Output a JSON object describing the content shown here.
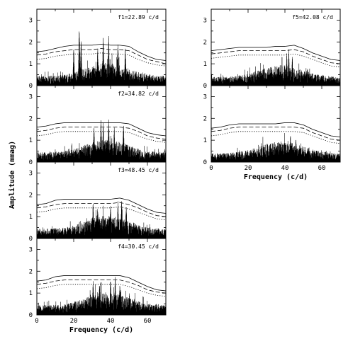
{
  "chart_data": [
    {
      "type": "line",
      "panel": "left-1",
      "annotation": "f1=22.89 c/d",
      "xlim": [
        0,
        70
      ],
      "ylim": [
        0,
        3.5
      ],
      "yticks": [
        "0",
        "1",
        "2",
        "3"
      ],
      "xticks": [],
      "xlabel": "",
      "peaks": [
        [
          20,
          1.9
        ],
        [
          23,
          3.0
        ],
        [
          24,
          2.4
        ],
        [
          33,
          1.9
        ],
        [
          36,
          2.4
        ],
        [
          39,
          2.5
        ],
        [
          44,
          2.1
        ],
        [
          48,
          1.95
        ]
      ],
      "noise_base": 0.55,
      "series": [
        {
          "style": "solid",
          "values_x": [
            0,
            5,
            10,
            15,
            20,
            25,
            30,
            35,
            40,
            45,
            50,
            55,
            60,
            65,
            70
          ],
          "values_y": [
            1.55,
            1.6,
            1.7,
            1.8,
            1.85,
            1.85,
            1.85,
            1.9,
            1.85,
            1.85,
            1.8,
            1.55,
            1.35,
            1.2,
            1.15
          ]
        },
        {
          "style": "dashed",
          "values_x": [
            0,
            5,
            10,
            15,
            20,
            25,
            30,
            35,
            40,
            45,
            50,
            55,
            60,
            65,
            70
          ],
          "values_y": [
            1.4,
            1.45,
            1.55,
            1.6,
            1.65,
            1.65,
            1.65,
            1.7,
            1.65,
            1.65,
            1.6,
            1.4,
            1.2,
            1.1,
            1.0
          ]
        },
        {
          "style": "dotted",
          "values_x": [
            0,
            5,
            10,
            15,
            20,
            25,
            30,
            35,
            40,
            45,
            50,
            55,
            60,
            65,
            70
          ],
          "values_y": [
            1.2,
            1.25,
            1.35,
            1.4,
            1.45,
            1.45,
            1.45,
            1.5,
            1.45,
            1.45,
            1.4,
            1.2,
            1.05,
            0.95,
            0.9
          ]
        }
      ]
    },
    {
      "type": "line",
      "panel": "left-2",
      "annotation": "f2=34.82 c/d",
      "xlim": [
        0,
        70
      ],
      "ylim": [
        0,
        3.5
      ],
      "yticks": [
        "0",
        "1",
        "2",
        "3"
      ],
      "xticks": [],
      "xlabel": "",
      "peaks": [
        [
          31,
          1.8
        ],
        [
          34.8,
          2.2
        ],
        [
          36,
          2.0
        ],
        [
          39,
          2.1
        ],
        [
          42,
          1.7
        ],
        [
          47,
          2.0
        ]
      ],
      "noise_base": 0.55,
      "series": [
        {
          "style": "solid",
          "values_x": [
            0,
            5,
            10,
            15,
            20,
            25,
            30,
            35,
            40,
            45,
            50,
            55,
            60,
            65,
            70
          ],
          "values_y": [
            1.6,
            1.65,
            1.75,
            1.8,
            1.8,
            1.8,
            1.8,
            1.8,
            1.8,
            1.8,
            1.75,
            1.55,
            1.35,
            1.25,
            1.2
          ]
        },
        {
          "style": "dashed",
          "values_x": [
            0,
            5,
            10,
            15,
            20,
            25,
            30,
            35,
            40,
            45,
            50,
            55,
            60,
            65,
            70
          ],
          "values_y": [
            1.4,
            1.45,
            1.55,
            1.6,
            1.6,
            1.6,
            1.6,
            1.6,
            1.6,
            1.6,
            1.55,
            1.4,
            1.2,
            1.1,
            1.05
          ]
        },
        {
          "style": "dotted",
          "values_x": [
            0,
            5,
            10,
            15,
            20,
            25,
            30,
            35,
            40,
            45,
            50,
            55,
            60,
            65,
            70
          ],
          "values_y": [
            1.2,
            1.25,
            1.35,
            1.4,
            1.4,
            1.4,
            1.4,
            1.4,
            1.4,
            1.4,
            1.35,
            1.2,
            1.05,
            0.95,
            0.9
          ]
        }
      ]
    },
    {
      "type": "line",
      "panel": "left-3",
      "annotation": "f3=48.45 c/d",
      "xlim": [
        0,
        70
      ],
      "ylim": [
        0,
        3.5
      ],
      "yticks": [
        "0",
        "1",
        "2",
        "3"
      ],
      "xticks": [],
      "xlabel": "",
      "peaks": [
        [
          30.5,
          1.85
        ],
        [
          33,
          1.6
        ],
        [
          40,
          1.7
        ],
        [
          44,
          1.8
        ],
        [
          46,
          1.95
        ],
        [
          48.5,
          1.7
        ]
      ],
      "noise_base": 0.55,
      "series": [
        {
          "style": "solid",
          "values_x": [
            0,
            5,
            10,
            15,
            20,
            25,
            30,
            35,
            40,
            45,
            50,
            55,
            60,
            65,
            70
          ],
          "values_y": [
            1.55,
            1.6,
            1.75,
            1.8,
            1.8,
            1.8,
            1.8,
            1.8,
            1.8,
            1.85,
            1.75,
            1.55,
            1.35,
            1.2,
            1.15
          ]
        },
        {
          "style": "dashed",
          "values_x": [
            0,
            5,
            10,
            15,
            20,
            25,
            30,
            35,
            40,
            45,
            50,
            55,
            60,
            65,
            70
          ],
          "values_y": [
            1.4,
            1.45,
            1.55,
            1.6,
            1.6,
            1.6,
            1.6,
            1.6,
            1.6,
            1.65,
            1.55,
            1.4,
            1.2,
            1.05,
            1.0
          ]
        },
        {
          "style": "dotted",
          "values_x": [
            0,
            5,
            10,
            15,
            20,
            25,
            30,
            35,
            40,
            45,
            50,
            55,
            60,
            65,
            70
          ],
          "values_y": [
            1.2,
            1.25,
            1.35,
            1.4,
            1.4,
            1.4,
            1.4,
            1.4,
            1.4,
            1.45,
            1.35,
            1.2,
            1.05,
            0.9,
            0.85
          ]
        }
      ]
    },
    {
      "type": "line",
      "panel": "left-4",
      "annotation": "f4=30.45 c/d",
      "xlim": [
        0,
        70
      ],
      "ylim": [
        0,
        3.5
      ],
      "yticks": [
        "0",
        "1",
        "2",
        "3"
      ],
      "xticks": [
        "0",
        "20",
        "40",
        "60"
      ],
      "xlabel": "Frequency (c/d)",
      "peaks": [
        [
          30.5,
          1.75
        ],
        [
          34,
          1.6
        ],
        [
          40,
          1.65
        ],
        [
          42.5,
          1.85
        ],
        [
          45,
          1.55
        ]
      ],
      "noise_base": 0.55,
      "series": [
        {
          "style": "solid",
          "values_x": [
            0,
            5,
            10,
            15,
            20,
            25,
            30,
            35,
            40,
            45,
            50,
            55,
            60,
            65,
            70
          ],
          "values_y": [
            1.55,
            1.6,
            1.75,
            1.8,
            1.8,
            1.8,
            1.8,
            1.8,
            1.8,
            1.8,
            1.7,
            1.5,
            1.3,
            1.15,
            1.1
          ]
        },
        {
          "style": "dashed",
          "values_x": [
            0,
            5,
            10,
            15,
            20,
            25,
            30,
            35,
            40,
            45,
            50,
            55,
            60,
            65,
            70
          ],
          "values_y": [
            1.4,
            1.45,
            1.55,
            1.6,
            1.6,
            1.6,
            1.6,
            1.6,
            1.6,
            1.6,
            1.5,
            1.35,
            1.15,
            1.05,
            1.0
          ]
        },
        {
          "style": "dotted",
          "values_x": [
            0,
            5,
            10,
            15,
            20,
            25,
            30,
            35,
            40,
            45,
            50,
            55,
            60,
            65,
            70
          ],
          "values_y": [
            1.2,
            1.25,
            1.35,
            1.4,
            1.4,
            1.4,
            1.4,
            1.4,
            1.4,
            1.4,
            1.3,
            1.15,
            1.0,
            0.9,
            0.85
          ]
        }
      ]
    },
    {
      "type": "line",
      "panel": "right-1",
      "annotation": "f5=42.08 c/d",
      "xlim": [
        0,
        70
      ],
      "ylim": [
        0,
        3.5
      ],
      "yticks": [
        "0",
        "1",
        "2",
        "3"
      ],
      "xticks": [],
      "xlabel": "",
      "peaks": [
        [
          41,
          1.55
        ],
        [
          42.1,
          1.8
        ],
        [
          44,
          1.45
        ]
      ],
      "noise_base": 0.5,
      "series": [
        {
          "style": "solid",
          "values_x": [
            0,
            5,
            10,
            15,
            20,
            25,
            30,
            35,
            40,
            45,
            50,
            55,
            60,
            65,
            70
          ],
          "values_y": [
            1.6,
            1.65,
            1.7,
            1.75,
            1.75,
            1.75,
            1.75,
            1.8,
            1.8,
            1.85,
            1.7,
            1.5,
            1.35,
            1.2,
            1.15
          ]
        },
        {
          "style": "dashed",
          "values_x": [
            0,
            5,
            10,
            15,
            20,
            25,
            30,
            35,
            40,
            45,
            50,
            55,
            60,
            65,
            70
          ],
          "values_y": [
            1.45,
            1.5,
            1.55,
            1.6,
            1.6,
            1.6,
            1.6,
            1.6,
            1.6,
            1.65,
            1.55,
            1.35,
            1.2,
            1.05,
            1.0
          ]
        },
        {
          "style": "dotted",
          "values_x": [
            0,
            5,
            10,
            15,
            20,
            25,
            30,
            35,
            40,
            45,
            50,
            55,
            60,
            65,
            70
          ],
          "values_y": [
            1.25,
            1.3,
            1.35,
            1.4,
            1.4,
            1.4,
            1.4,
            1.4,
            1.4,
            1.45,
            1.35,
            1.2,
            1.05,
            0.9,
            0.85
          ]
        }
      ]
    },
    {
      "type": "line",
      "panel": "right-2",
      "annotation": "",
      "xlim": [
        0,
        70
      ],
      "ylim": [
        0,
        3.5
      ],
      "yticks": [
        "0",
        "1",
        "2",
        "3"
      ],
      "xticks": [
        "0",
        "20",
        "40",
        "60"
      ],
      "xlabel": "Frequency (c/d)",
      "peaks": [
        [
          43,
          1.3
        ],
        [
          46,
          1.2
        ]
      ],
      "noise_base": 0.5,
      "series": [
        {
          "style": "solid",
          "values_x": [
            0,
            5,
            10,
            15,
            20,
            25,
            30,
            35,
            40,
            45,
            50,
            55,
            60,
            65,
            70
          ],
          "values_y": [
            1.55,
            1.6,
            1.7,
            1.75,
            1.75,
            1.75,
            1.75,
            1.75,
            1.8,
            1.8,
            1.7,
            1.5,
            1.35,
            1.2,
            1.15
          ]
        },
        {
          "style": "dashed",
          "values_x": [
            0,
            5,
            10,
            15,
            20,
            25,
            30,
            35,
            40,
            45,
            50,
            55,
            60,
            65,
            70
          ],
          "values_y": [
            1.4,
            1.45,
            1.55,
            1.6,
            1.6,
            1.6,
            1.6,
            1.6,
            1.6,
            1.6,
            1.55,
            1.35,
            1.2,
            1.05,
            1.0
          ]
        },
        {
          "style": "dotted",
          "values_x": [
            0,
            5,
            10,
            15,
            20,
            25,
            30,
            35,
            40,
            45,
            50,
            55,
            60,
            65,
            70
          ],
          "values_y": [
            1.2,
            1.25,
            1.35,
            1.4,
            1.4,
            1.4,
            1.4,
            1.4,
            1.4,
            1.4,
            1.35,
            1.2,
            1.05,
            0.9,
            0.85
          ]
        }
      ]
    }
  ],
  "shared_ylabel": "Amplitude (mmag)"
}
